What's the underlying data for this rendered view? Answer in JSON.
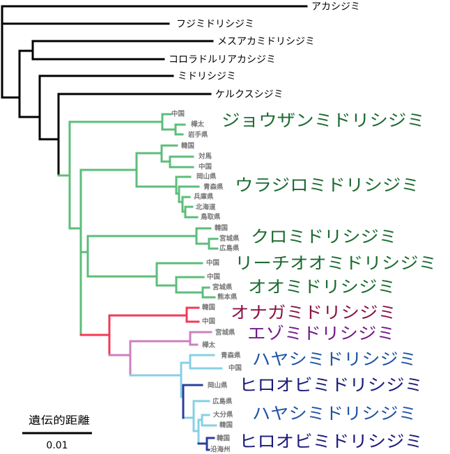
{
  "outgroups": [
    "アカシジミ",
    "フジミドリシジミ",
    "メスアカミドリシジミ",
    "コロラドルリアカシジミ",
    "ミドリシジミ",
    "ケルクスシジミ"
  ],
  "clades": [
    {
      "name": "ジョウザンミドリシジミ",
      "color": "#1a6b30"
    },
    {
      "name": "ウラジロミドリシジミ",
      "color": "#1a6b30"
    },
    {
      "name": "クロミドリシジミ",
      "color": "#1a6b30"
    },
    {
      "name": "リーチオオミドリシジミ",
      "color": "#1a6b30"
    },
    {
      "name": "オオミドリシジミ",
      "color": "#1a6b30"
    },
    {
      "name": "オナガミドリシジミ",
      "color": "#8a1446"
    },
    {
      "name": "エゾミドリシジミ",
      "color": "#741a8a"
    },
    {
      "name": "ハヤシミドリシジミ",
      "color": "#1f54a4"
    },
    {
      "name": "ヒロオビミドリシジミ",
      "color": "#1a1a7a"
    },
    {
      "name": "ハヤシミドリシジミ",
      "color": "#1f54a4"
    },
    {
      "name": "ヒロオビミドリシジミ",
      "color": "#1a1a7a"
    }
  ],
  "localities": [
    "中国",
    "樺太",
    "岩手県",
    "韓国",
    "対馬",
    "中国",
    "岡山県",
    "青森県",
    "兵庫県",
    "北海道",
    "鳥取県",
    "韓国",
    "宮城県",
    "広島県",
    "中国",
    "中国",
    "宮城県",
    "熊本県",
    "韓国",
    "中国",
    "宮城県",
    "樺太",
    "青森県",
    "中国",
    "岡山県",
    "広島県",
    "大分県",
    "韓国",
    "韓国",
    "沿海州"
  ],
  "branch_colors": {
    "outgroup": "#000000",
    "green": "#5cbd7a",
    "red": "#f23a55",
    "pink": "#cc7fc0",
    "light_blue": "#86d0e6",
    "dark_blue": "#2a3f9a"
  },
  "scale_bar": {
    "label": "遺伝的距離",
    "value": "0.01"
  }
}
